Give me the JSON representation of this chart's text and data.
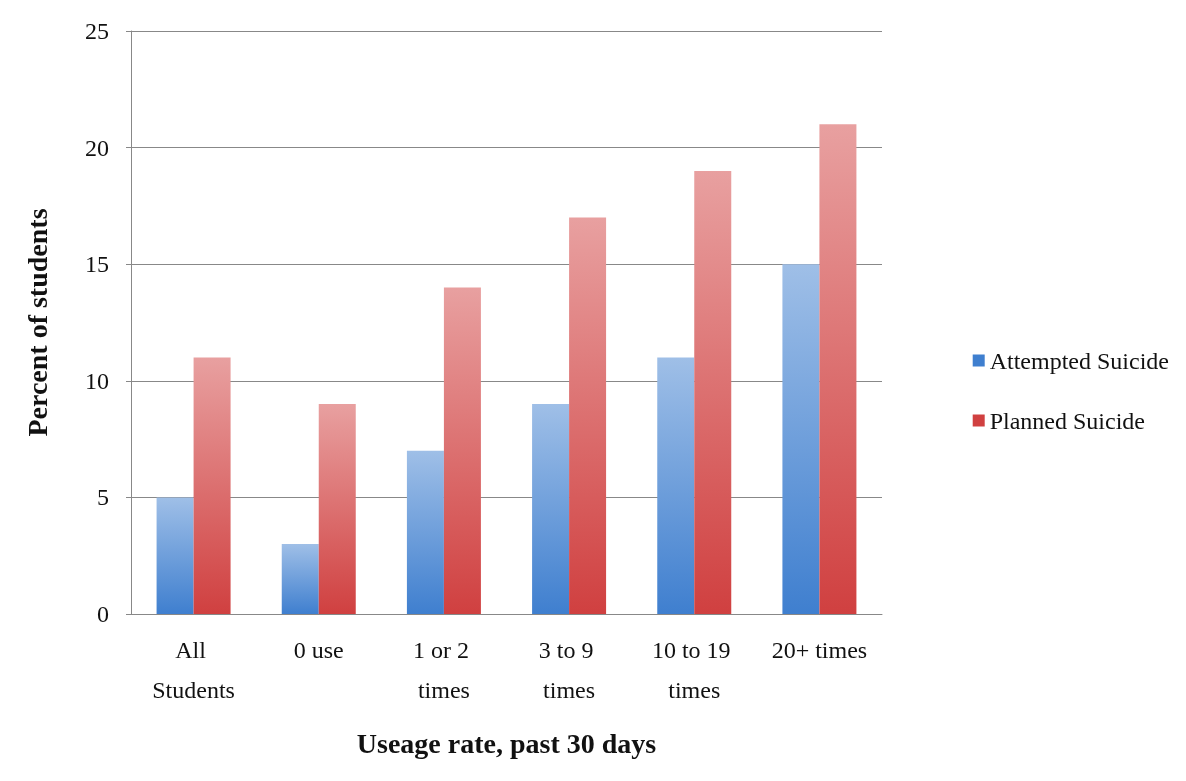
{
  "chart_data": {
    "type": "bar",
    "xlabel": "Useage rate, past 30 days",
    "ylabel": "Percent of students",
    "categories": [
      "All Students",
      "0 use",
      "1 or 2 times",
      "3 to 9 times",
      "10 to 19 times",
      "20+ times"
    ],
    "series": [
      {
        "name": "Attempted Suicide",
        "color": "#3f7fcf",
        "values": [
          5,
          3,
          7,
          9,
          11,
          15
        ]
      },
      {
        "name": "Planned Suicide",
        "color": "#d04040",
        "values": [
          11,
          9,
          14,
          17,
          19,
          21
        ]
      }
    ],
    "ylim": [
      0,
      25
    ],
    "yticks": [
      0,
      5,
      10,
      15,
      20,
      25
    ],
    "grid": "y",
    "legend": "right"
  }
}
